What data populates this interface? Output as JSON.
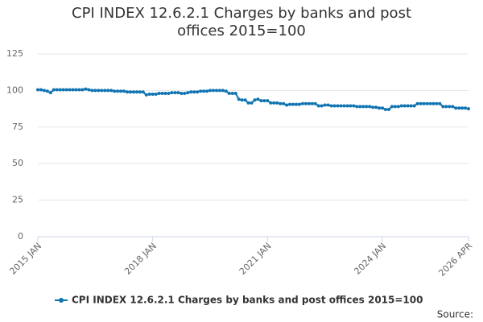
{
  "chart_data": {
    "type": "line",
    "title": "CPI INDEX 12.6.2.1 Charges by banks and post offices 2015=100",
    "source_label": "Source:",
    "categories": [
      "2015 JAN",
      null,
      null,
      null,
      null,
      null,
      null,
      null,
      null,
      null,
      null,
      null,
      null,
      null,
      null,
      null,
      null,
      null,
      null,
      null,
      null,
      null,
      null,
      null,
      null,
      null,
      null,
      null,
      null,
      null,
      null,
      null,
      null,
      null,
      null,
      null,
      "2018 JAN",
      null,
      null,
      null,
      null,
      null,
      null,
      null,
      null,
      null,
      null,
      null,
      null,
      null,
      null,
      null,
      null,
      null,
      null,
      null,
      null,
      null,
      null,
      null,
      null,
      null,
      null,
      null,
      null,
      null,
      null,
      null,
      null,
      null,
      null,
      null,
      "2021 JAN",
      null,
      null,
      null,
      null,
      null,
      null,
      null,
      null,
      null,
      null,
      null,
      null,
      null,
      null,
      null,
      null,
      null,
      null,
      null,
      null,
      null,
      null,
      null,
      null,
      null,
      null,
      null,
      null,
      null,
      null,
      null,
      null,
      null,
      null,
      null,
      "2024 JAN",
      null,
      null,
      null,
      null,
      null,
      null,
      null,
      null,
      null,
      null,
      null,
      null,
      null,
      null,
      null,
      null,
      null,
      null,
      null,
      null,
      null,
      null,
      null,
      null,
      null,
      null,
      "2026 APR"
    ],
    "series": [
      {
        "name": "CPI INDEX 12.6.2.1 Charges by banks and post offices 2015=100",
        "color": "#0f74b2",
        "values": [
          100.5,
          100.5,
          100,
          99.5,
          98.5,
          100.5,
          100.5,
          100.5,
          100.5,
          100.5,
          100.5,
          100.5,
          100.5,
          100.5,
          100.5,
          101,
          100.5,
          100,
          100,
          100,
          100,
          100,
          100,
          100,
          99.5,
          99.5,
          99.5,
          99.5,
          99,
          99,
          99,
          99,
          99,
          99,
          97,
          97.5,
          97.5,
          97.5,
          98,
          98,
          98,
          98,
          98.5,
          98.5,
          98.5,
          98,
          98,
          98.5,
          99,
          99,
          99,
          99.5,
          99.5,
          99.5,
          100,
          100,
          100,
          100,
          100,
          99.5,
          98,
          98,
          98,
          94,
          93.5,
          93.5,
          91.5,
          91.5,
          93.5,
          94,
          93,
          93,
          93,
          91.5,
          91.5,
          91.5,
          91,
          91,
          90,
          90.5,
          90.5,
          90.5,
          90.5,
          91,
          91,
          91,
          91,
          91,
          89.5,
          89.5,
          90,
          90,
          89.5,
          89.5,
          89.5,
          89.5,
          89.5,
          89.5,
          89.5,
          89.5,
          89,
          89,
          89,
          89,
          89,
          88.5,
          88.5,
          88,
          88,
          87,
          87,
          89,
          89,
          89,
          89.5,
          89.5,
          89.5,
          89.5,
          89.5,
          91,
          91,
          91,
          91,
          91,
          91,
          91,
          91,
          89,
          89,
          89,
          89,
          88,
          88,
          88,
          88,
          87.5
        ]
      }
    ],
    "ylim": [
      0,
      125
    ],
    "yticks": [
      0,
      25,
      50,
      75,
      100,
      125
    ],
    "grid": true,
    "legend": "bottom"
  }
}
